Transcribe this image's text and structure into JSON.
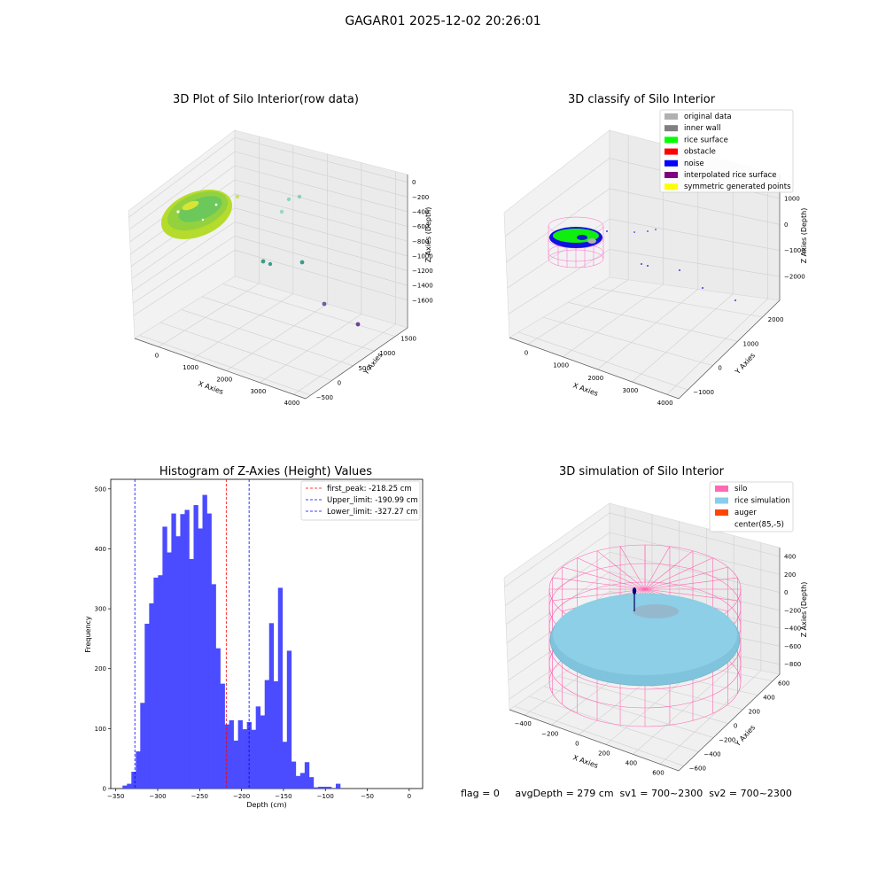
{
  "suptitle": "GAGAR01 2025-12-02 20:26:01",
  "chart_data": [
    {
      "type": "scatter3d",
      "title": "3D Plot of Silo Interior(row data)",
      "xlabel": "X Axies",
      "ylabel": "Y Axies",
      "zlabel": "Z Axies (Depth)",
      "x_ticks": [
        "0",
        "1000",
        "2000",
        "3000",
        "4000"
      ],
      "y_ticks": [
        "−500",
        "0",
        "500",
        "1000",
        "1500"
      ],
      "z_ticks": [
        "0",
        "−200",
        "−400",
        "−600",
        "−800",
        "−1000",
        "−1200",
        "−1400",
        "−1600"
      ],
      "colormap": "viridis-like (by depth)"
    },
    {
      "type": "scatter3d",
      "title": "3D classify of Silo Interior",
      "xlabel": "X Axies",
      "ylabel": "Y Axies",
      "zlabel": "Z Axies (Depth)",
      "x_ticks": [
        "0",
        "1000",
        "2000",
        "3000",
        "4000"
      ],
      "y_ticks": [
        "−1000",
        "0",
        "1000",
        "2000"
      ],
      "z_ticks": [
        "1000",
        "0",
        "−1000",
        "−2000"
      ],
      "legend_position": "top-right",
      "legend": [
        {
          "label": "original data",
          "color": "#b0b0b0"
        },
        {
          "label": "inner wall",
          "color": "#808080"
        },
        {
          "label": "rice surface",
          "color": "#00ff00"
        },
        {
          "label": "obstacle",
          "color": "#ff0000"
        },
        {
          "label": "noise",
          "color": "#0000ff"
        },
        {
          "label": "interpolated rice surface",
          "color": "#800080"
        },
        {
          "label": "symmetric generated points",
          "color": "#ffff00"
        }
      ]
    },
    {
      "type": "bar",
      "title": "Histogram of Z-Axies (Height) Values",
      "xlabel": "Depth (cm)",
      "ylabel": "Frequency",
      "xlim": [
        -350,
        0
      ],
      "ylim": [
        0,
        500
      ],
      "x_ticks": [
        "−350",
        "−300",
        "−250",
        "−200",
        "−150",
        "−100",
        "−50",
        "0"
      ],
      "y_ticks": [
        "0",
        "100",
        "200",
        "300",
        "400",
        "500"
      ],
      "bar_color": "#4b4bff",
      "bin_start": -342.0,
      "bin_width": 5.3,
      "values": [
        5,
        8,
        28,
        62,
        143,
        275,
        309,
        352,
        356,
        437,
        394,
        459,
        421,
        458,
        465,
        383,
        473,
        434,
        490,
        459,
        341,
        234,
        175,
        107,
        114,
        80,
        114,
        99,
        111,
        98,
        137,
        122,
        181,
        276,
        179,
        335,
        78,
        230,
        45,
        21,
        26,
        44,
        19,
        2,
        3,
        3,
        3,
        0,
        8
      ],
      "legend_position": "top-right",
      "vlines": [
        {
          "label": "first_peak: -218.25 cm",
          "x": -218.25,
          "color": "#ff0000"
        },
        {
          "label": "Upper_limit: -190.99 cm",
          "x": -190.99,
          "color": "#0000ff"
        },
        {
          "label": "Lower_limit: -327.27 cm",
          "x": -327.27,
          "color": "#0000ff"
        }
      ]
    },
    {
      "type": "surface3d",
      "title": "3D simulation of Silo Interior",
      "xlabel": "X Axies",
      "ylabel": "Y Axies",
      "zlabel": "Z Axies (Depth)",
      "x_ticks": [
        "−400",
        "−200",
        "0",
        "200",
        "400",
        "600"
      ],
      "y_ticks": [
        "−600",
        "−400",
        "−200",
        "0",
        "200",
        "400",
        "600"
      ],
      "z_ticks": [
        "400",
        "200",
        "0",
        "−200",
        "−400",
        "−600",
        "−800"
      ],
      "legend_position": "top-right",
      "legend": [
        {
          "label": "silo",
          "color": "#ff69b4"
        },
        {
          "label": "rice simulation",
          "color": "#87ceeb"
        },
        {
          "label": "auger",
          "color": "#ff4500"
        },
        {
          "label": "center(85,-5)",
          "color": "#ffffff"
        }
      ]
    }
  ],
  "status": {
    "text": "flag = 0     avgDepth = 279 cm  sv1 = 700~2300  sv2 = 700~2300"
  }
}
